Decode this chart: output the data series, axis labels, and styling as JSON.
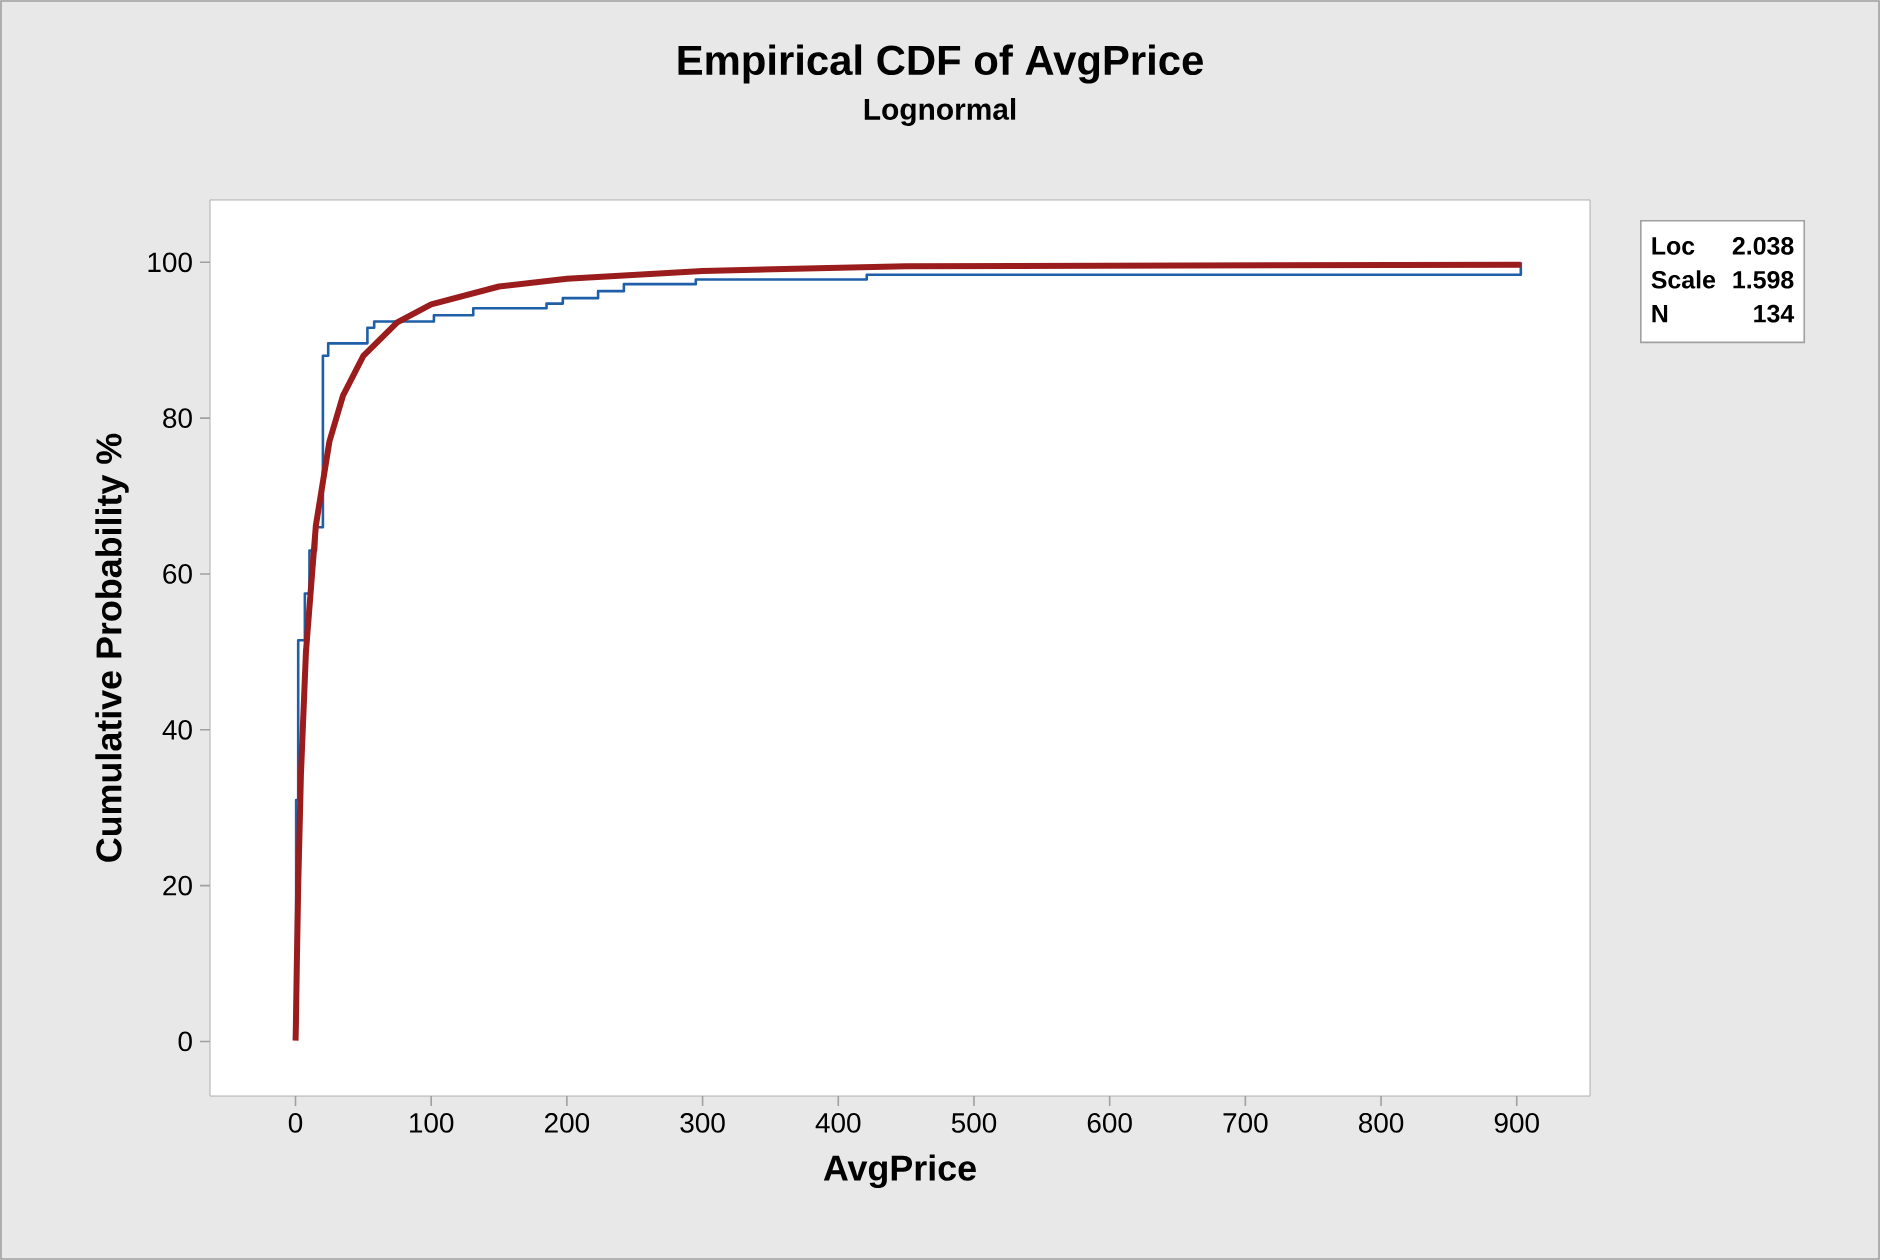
{
  "chart_data": {
    "type": "step",
    "title": "Empirical CDF of AvgPrice",
    "subtitle": "Lognormal",
    "xlabel": "AvgPrice",
    "ylabel": "Cumulative Probability %",
    "xlim": [
      -63,
      954
    ],
    "ylim": [
      -7,
      108
    ],
    "xticks": [
      0,
      100,
      200,
      300,
      400,
      500,
      600,
      700,
      800,
      900
    ],
    "yticks": [
      0,
      20,
      40,
      60,
      80,
      100
    ],
    "marker": "none",
    "annotations": [
      "Loc",
      "2.038",
      "Scale",
      "1.598",
      "N",
      "134"
    ],
    "series": [
      {
        "type": "step",
        "color": "#1f5fa8",
        "x": [
          0,
          0.5,
          2,
          6.9,
          10.3,
          15.2,
          20.2,
          24.1,
          53,
          58,
          102,
          131,
          185,
          197,
          223,
          242,
          295,
          421,
          903
        ],
        "values": [
          0.7,
          31,
          51.5,
          57.5,
          63,
          66,
          88,
          89.6,
          91.6,
          92.4,
          93.2,
          94.1,
          94.7,
          95.4,
          96.3,
          97.2,
          97.8,
          98.4,
          100
        ]
      },
      {
        "type": "line",
        "color": "#9b1c1c",
        "x": [
          0.05,
          0.3,
          0.5,
          1,
          2,
          4,
          7.7,
          15,
          25,
          35,
          50,
          75,
          100,
          150,
          200,
          300,
          450,
          903
        ],
        "values": [
          0.1,
          2.1,
          4.4,
          10.1,
          20,
          34.2,
          50,
          66.2,
          77,
          82.9,
          88,
          92.3,
          94.6,
          96.9,
          97.9,
          98.9,
          99.5,
          99.7
        ]
      }
    ]
  }
}
